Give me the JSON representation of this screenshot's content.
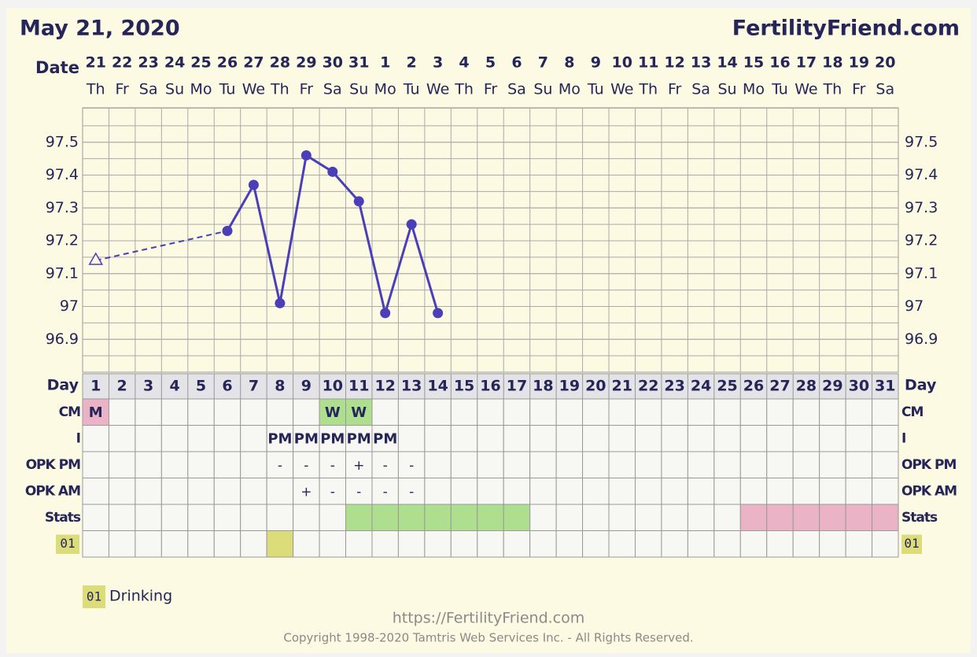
{
  "chart_data": {
    "type": "line",
    "title": "May 21, 2020",
    "site": "FertilityFriend.com",
    "date_label": "Date",
    "categories": [
      "21",
      "22",
      "23",
      "24",
      "25",
      "26",
      "27",
      "28",
      "29",
      "30",
      "31",
      "1",
      "2",
      "3",
      "4",
      "5",
      "6",
      "7",
      "8",
      "9",
      "10",
      "11",
      "12",
      "13",
      "14",
      "15",
      "16",
      "17",
      "18",
      "19",
      "20"
    ],
    "weekdays": [
      "Th",
      "Fr",
      "Sa",
      "Su",
      "Mo",
      "Tu",
      "We",
      "Th",
      "Fr",
      "Sa",
      "Su",
      "Mo",
      "Tu",
      "We",
      "Th",
      "Fr",
      "Sa",
      "Su",
      "Mo",
      "Tu",
      "We",
      "Th",
      "Fr",
      "Sa",
      "Su",
      "Mo",
      "Tu",
      "We",
      "Th",
      "Fr",
      "Sa"
    ],
    "ylim": [
      96.8,
      97.6
    ],
    "yticks": [
      96.9,
      97.0,
      97.1,
      97.2,
      97.3,
      97.4,
      97.5
    ],
    "grid": true,
    "series": [
      {
        "color": "#4a3fb8",
        "values": [
          97.14,
          null,
          null,
          null,
          null,
          97.23,
          97.37,
          97.01,
          97.46,
          97.41,
          97.32,
          96.98,
          97.25,
          96.98,
          null,
          null,
          null,
          null,
          null,
          null,
          null,
          null,
          null,
          null,
          null,
          null,
          null,
          null,
          null,
          null,
          null
        ],
        "hollow_triangle_points": [
          0
        ]
      }
    ],
    "table": {
      "day_label": "Day",
      "cycle_days": [
        "1",
        "2",
        "3",
        "4",
        "5",
        "6",
        "7",
        "8",
        "9",
        "10",
        "11",
        "12",
        "13",
        "14",
        "15",
        "16",
        "17",
        "18",
        "19",
        "20",
        "21",
        "22",
        "23",
        "24",
        "25",
        "26",
        "27",
        "28",
        "29",
        "30",
        "31"
      ],
      "rows": [
        {
          "label": "CM",
          "cells": [
            "M",
            null,
            null,
            null,
            null,
            null,
            null,
            null,
            null,
            "W",
            "W",
            null,
            null,
            null,
            null,
            null,
            null,
            null,
            null,
            null,
            null,
            null,
            null,
            null,
            null,
            null,
            null,
            null,
            null,
            null,
            null
          ],
          "colors": [
            "#eab3c6",
            null,
            null,
            null,
            null,
            null,
            null,
            null,
            null,
            "#addf8e",
            "#addf8e",
            null,
            null,
            null,
            null,
            null,
            null,
            null,
            null,
            null,
            null,
            null,
            null,
            null,
            null,
            null,
            null,
            null,
            null,
            null,
            null
          ],
          "bold": true
        },
        {
          "label": "I",
          "cells": [
            null,
            null,
            null,
            null,
            null,
            null,
            null,
            "PM",
            "PM",
            "PM",
            "PM",
            "PM",
            null,
            null,
            null,
            null,
            null,
            null,
            null,
            null,
            null,
            null,
            null,
            null,
            null,
            null,
            null,
            null,
            null,
            null,
            null
          ],
          "bold": true
        },
        {
          "label": "OPK PM",
          "cells": [
            null,
            null,
            null,
            null,
            null,
            null,
            null,
            "-",
            "-",
            "-",
            "+",
            "-",
            "-",
            null,
            null,
            null,
            null,
            null,
            null,
            null,
            null,
            null,
            null,
            null,
            null,
            null,
            null,
            null,
            null,
            null,
            null
          ]
        },
        {
          "label": "OPK AM",
          "cells": [
            null,
            null,
            null,
            null,
            null,
            null,
            null,
            null,
            "+",
            "-",
            "-",
            "-",
            "-",
            null,
            null,
            null,
            null,
            null,
            null,
            null,
            null,
            null,
            null,
            null,
            null,
            null,
            null,
            null,
            null,
            null,
            null
          ]
        },
        {
          "label": "Stats",
          "colors": [
            null,
            null,
            null,
            null,
            null,
            null,
            null,
            null,
            null,
            null,
            "#addf8e",
            "#addf8e",
            "#addf8e",
            "#addf8e",
            "#addf8e",
            "#addf8e",
            "#addf8e",
            null,
            null,
            null,
            null,
            null,
            null,
            null,
            null,
            "#eab3c6",
            "#eab3c6",
            "#eab3c6",
            "#eab3c6",
            "#eab3c6",
            "#eab3c6",
            "#eab3c6"
          ]
        },
        {
          "code": "01",
          "colors": [
            null,
            null,
            null,
            null,
            null,
            null,
            null,
            "#dcdc7a",
            null,
            null,
            null,
            null,
            null,
            null,
            null,
            null,
            null,
            null,
            null,
            null,
            null,
            null,
            null,
            null,
            null,
            null,
            null,
            null,
            null,
            null,
            null
          ]
        }
      ]
    },
    "legend": [
      {
        "code": "01",
        "label": "Drinking",
        "color": "#dcdc7a"
      }
    ],
    "footer_url": "https://FertilityFriend.com",
    "copyright": "Copyright 1998-2020 Tamtris Web Services Inc. - All Rights Reserved."
  }
}
